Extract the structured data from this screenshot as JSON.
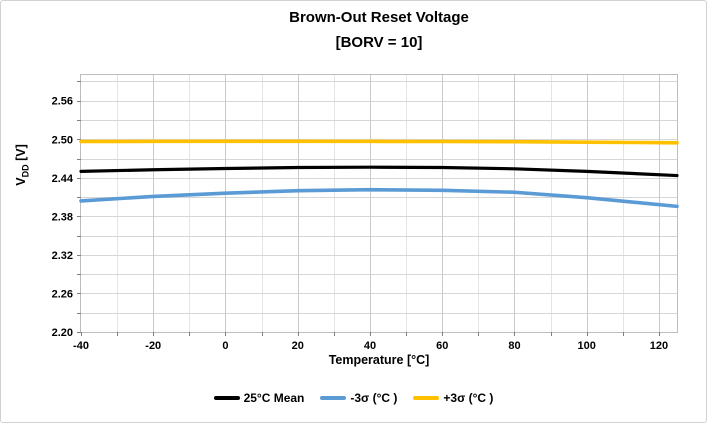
{
  "chart": {
    "title": "Brown-Out Reset Voltage",
    "subtitle": "[BORV = 10]"
  },
  "x_axis": {
    "title": "Temperature [°C]",
    "min": -40,
    "max": 125,
    "major_step": 20,
    "minor_step": 10,
    "tick_labels": [
      "-40",
      "-20",
      "0",
      "20",
      "40",
      "60",
      "80",
      "100",
      "120"
    ]
  },
  "y_axis": {
    "title_symbol": "V",
    "title_subscript": "DD",
    "title_unit": " [V]",
    "min": 2.2,
    "max": 2.6,
    "major_step": 0.06,
    "minor_step": 0.03,
    "tick_labels": [
      "2.56",
      "2.50",
      "2.44",
      "2.38",
      "2.32",
      "2.26",
      "2.20"
    ]
  },
  "legend": {
    "items": [
      {
        "label": "25°C Mean",
        "color": "#000000"
      },
      {
        "label": "-3σ (°C )",
        "color": "#5B9BD5"
      },
      {
        "label": "+3σ (°C )",
        "color": "#FFC000"
      }
    ]
  },
  "chart_data": {
    "type": "line",
    "title": "Brown-Out Reset Voltage [BORV = 10]",
    "xlabel": "Temperature [°C]",
    "ylabel": "VDD [V]",
    "x": [
      -40,
      -20,
      0,
      20,
      40,
      60,
      80,
      100,
      125
    ],
    "series": [
      {
        "name": "25°C Mean",
        "color": "#000000",
        "values": [
          2.45,
          2.4525,
          2.4545,
          2.456,
          2.4565,
          2.456,
          2.454,
          2.45,
          2.4435
        ]
      },
      {
        "name": "-3σ (°C )",
        "color": "#5B9BD5",
        "values": [
          2.404,
          2.411,
          2.416,
          2.42,
          2.4215,
          2.4205,
          2.4175,
          2.409,
          2.3955
        ]
      },
      {
        "name": "+3σ (°C )",
        "color": "#FFC000",
        "values": [
          2.4965,
          2.4967,
          2.4968,
          2.4968,
          2.4967,
          2.4965,
          2.4962,
          2.4955,
          2.4945
        ]
      }
    ],
    "xlim": [
      -40,
      125
    ],
    "ylim": [
      2.2,
      2.6
    ],
    "grid": true,
    "legend_position": "bottom"
  },
  "colors": {
    "grid_horizontal": "#d6d6d6",
    "grid_vertical_major": "#c9c9c9",
    "grid_vertical_minor": "#e4e4e4",
    "plot_border": "#bdbdbd",
    "tick": "#7f7f7f",
    "text": "#000000",
    "background": "#ffffff",
    "outer_border": "#d2d2d2"
  }
}
